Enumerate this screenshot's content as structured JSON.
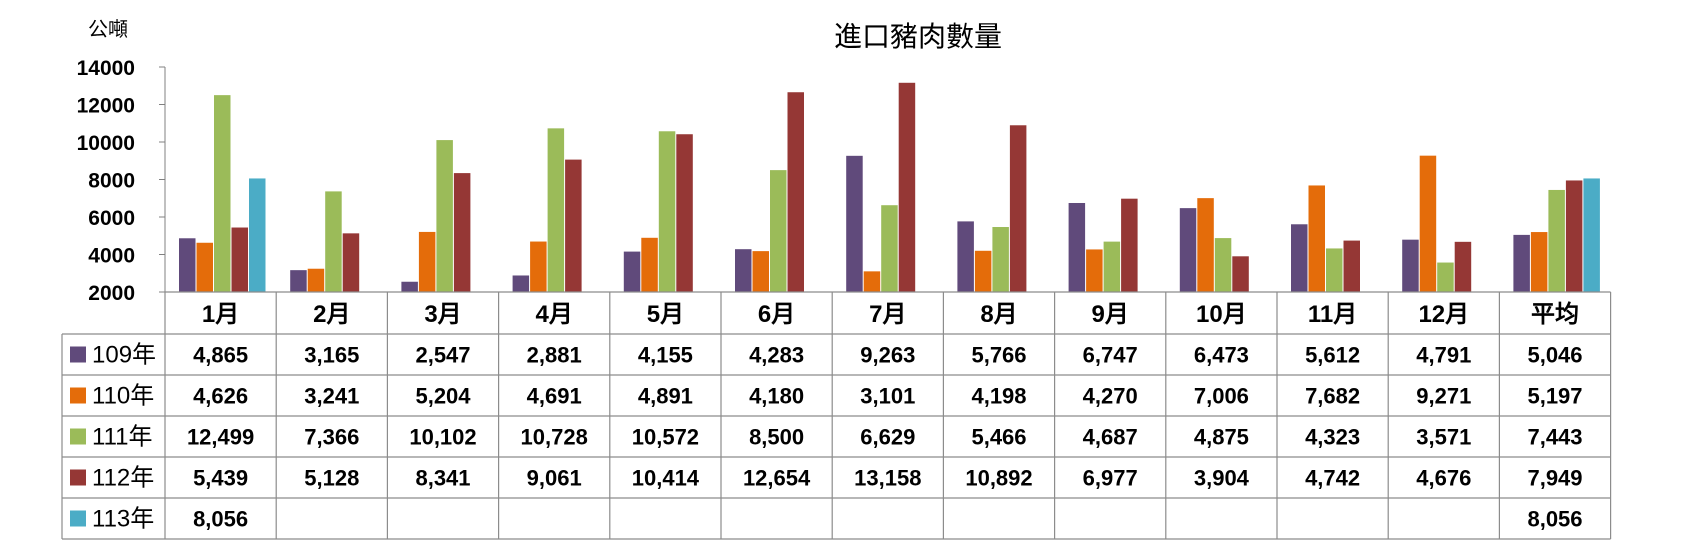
{
  "chart_data": {
    "type": "bar",
    "title": "進口豬肉數量",
    "ylabel": "公噸",
    "ylim": [
      2000,
      14000
    ],
    "yticks": [
      "2000",
      "4000",
      "6000",
      "8000",
      "10000",
      "12000",
      "14000"
    ],
    "categories": [
      "1月",
      "2月",
      "3月",
      "4月",
      "5月",
      "6月",
      "7月",
      "8月",
      "9月",
      "10月",
      "11月",
      "12月",
      "平均"
    ],
    "series": [
      {
        "name": "109年",
        "color": "#604a7b",
        "values": [
          4865,
          3165,
          2547,
          2881,
          4155,
          4283,
          9263,
          5766,
          6747,
          6473,
          5612,
          4791,
          5046
        ],
        "labels": [
          "4,865",
          "3,165",
          "2,547",
          "2,881",
          "4,155",
          "4,283",
          "9,263",
          "5,766",
          "6,747",
          "6,473",
          "5,612",
          "4,791",
          "5,046"
        ]
      },
      {
        "name": "110年",
        "color": "#e46c0a",
        "values": [
          4626,
          3241,
          5204,
          4691,
          4891,
          4180,
          3101,
          4198,
          4270,
          7006,
          7682,
          9271,
          5197
        ],
        "labels": [
          "4,626",
          "3,241",
          "5,204",
          "4,691",
          "4,891",
          "4,180",
          "3,101",
          "4,198",
          "4,270",
          "7,006",
          "7,682",
          "9,271",
          "5,197"
        ]
      },
      {
        "name": "111年",
        "color": "#9bbb59",
        "values": [
          12499,
          7366,
          10102,
          10728,
          10572,
          8500,
          6629,
          5466,
          4687,
          4875,
          4323,
          3571,
          7443
        ],
        "labels": [
          "12,499",
          "7,366",
          "10,102",
          "10,728",
          "10,572",
          "8,500",
          "6,629",
          "5,466",
          "4,687",
          "4,875",
          "4,323",
          "3,571",
          "7,443"
        ]
      },
      {
        "name": "112年",
        "color": "#953735",
        "values": [
          5439,
          5128,
          8341,
          9061,
          10414,
          12654,
          13158,
          10892,
          6977,
          3904,
          4742,
          4676,
          7949
        ],
        "labels": [
          "5,439",
          "5,128",
          "8,341",
          "9,061",
          "10,414",
          "12,654",
          "13,158",
          "10,892",
          "6,977",
          "3,904",
          "4,742",
          "4,676",
          "7,949"
        ]
      },
      {
        "name": "113年",
        "color": "#4bacc6",
        "values": [
          8056,
          null,
          null,
          null,
          null,
          null,
          null,
          null,
          null,
          null,
          null,
          null,
          8056
        ],
        "labels": [
          "8,056",
          "",
          "",
          "",
          "",
          "",
          "",
          "",
          "",
          "",
          "",
          "",
          "8,056"
        ]
      }
    ],
    "legend": "data-table-rows",
    "grid": false
  }
}
